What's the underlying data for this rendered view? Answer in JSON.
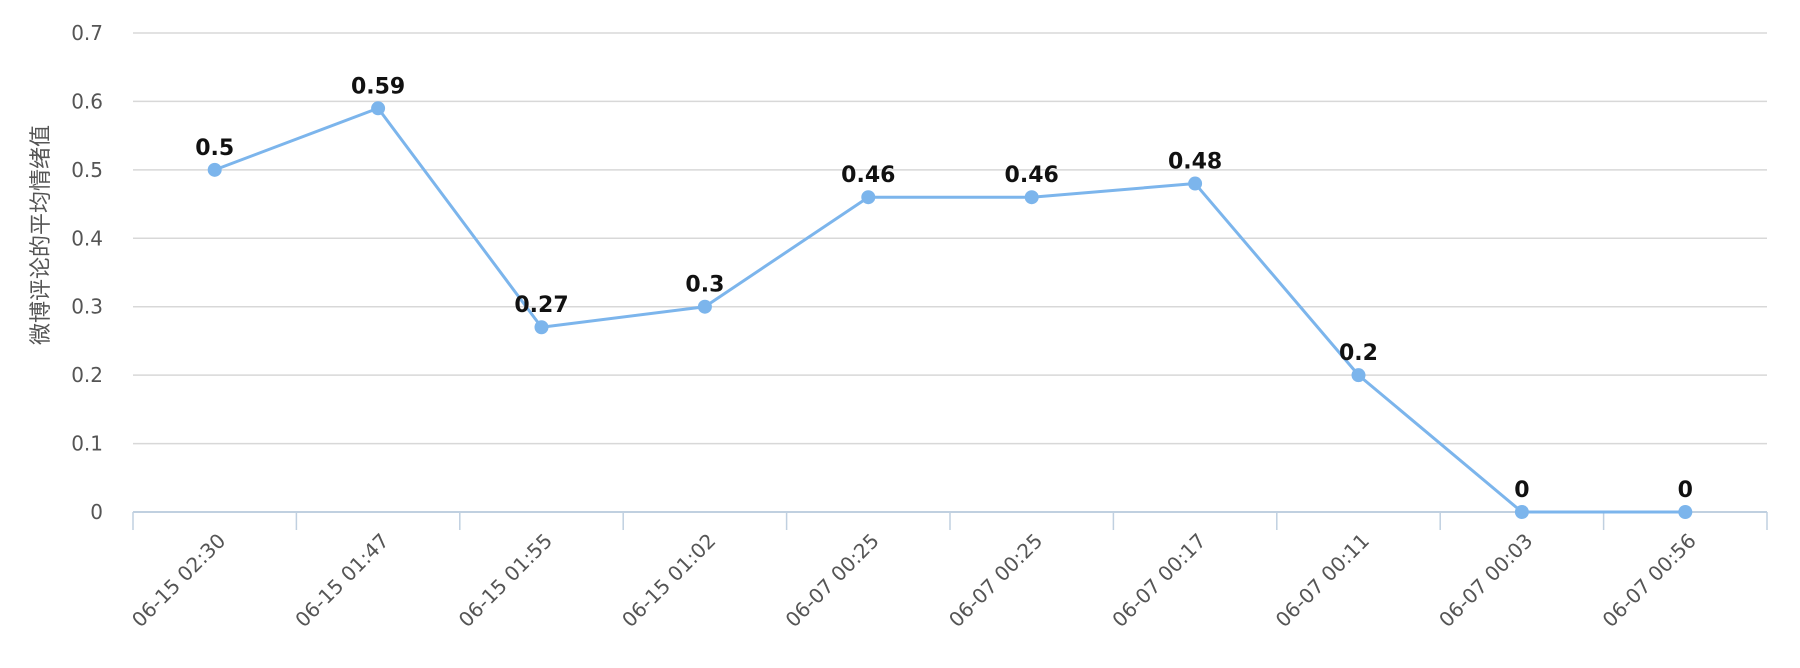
{
  "chart_data": {
    "type": "line",
    "ylabel": "微博评论的平均情绪值",
    "xlabel": "",
    "ylim": [
      0,
      0.7
    ],
    "yticks": [
      "0",
      "0.1",
      "0.2",
      "0.3",
      "0.4",
      "0.5",
      "0.6",
      "0.7"
    ],
    "categories": [
      "06-15 02:30",
      "06-15 01:47",
      "06-15 01:55",
      "06-15 01:02",
      "06-07 00:25",
      "06-07 00:25",
      "06-07 00:17",
      "06-07 00:11",
      "06-07 00:03",
      "06-07 00:56"
    ],
    "series": [
      {
        "values": [
          0.5,
          0.59,
          0.27,
          0.3,
          0.46,
          0.46,
          0.48,
          0.2,
          0,
          0
        ],
        "labels": [
          "0.5",
          "0.59",
          "0.27",
          "0.3",
          "0.46",
          "0.46",
          "0.48",
          "0.2",
          "0",
          "0"
        ],
        "color": "#7cb5ec"
      }
    ],
    "grid": true,
    "legend": "none",
    "colors": {
      "line": "#7cb5ec",
      "grid": "#d8d8d8",
      "axis": "#c0d0e0"
    }
  }
}
